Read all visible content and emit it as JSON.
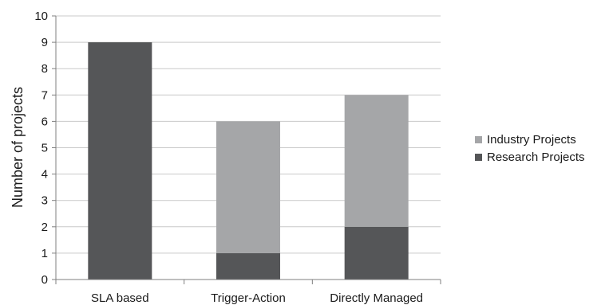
{
  "chart_data": {
    "type": "bar",
    "stacked": true,
    "title": "",
    "xlabel": "",
    "ylabel": "Number of projects",
    "ylim": [
      0,
      10
    ],
    "yticks": [
      0,
      1,
      2,
      3,
      4,
      5,
      6,
      7,
      8,
      9,
      10
    ],
    "grid": true,
    "legend_position": "right",
    "categories": [
      "SLA based",
      "Trigger-Action",
      "Directly Managed"
    ],
    "series": [
      {
        "name": "Research Projects",
        "values": [
          9,
          1,
          2
        ],
        "color": "#555658"
      },
      {
        "name": "Industry Projects",
        "values": [
          0,
          5,
          5
        ],
        "color": "#a5a6a8"
      }
    ],
    "legend_order": [
      "Industry Projects",
      "Research Projects"
    ]
  }
}
